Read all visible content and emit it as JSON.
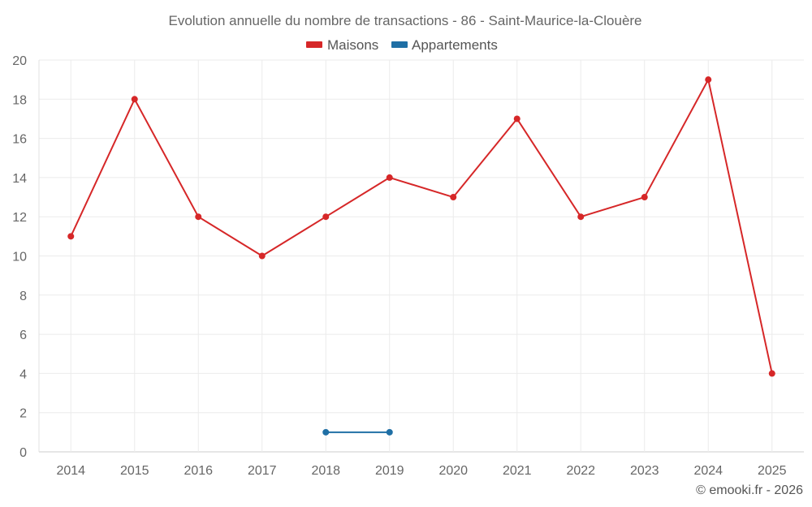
{
  "chart_data": {
    "type": "line",
    "title": "Evolution annuelle du nombre de transactions - 86 - Saint-Maurice-la-Clouère",
    "categories": [
      "2014",
      "2015",
      "2016",
      "2017",
      "2018",
      "2019",
      "2020",
      "2021",
      "2022",
      "2023",
      "2024",
      "2025"
    ],
    "series": [
      {
        "name": "Maisons",
        "color": "#d62728",
        "values": [
          11,
          18,
          12,
          10,
          12,
          14,
          13,
          17,
          12,
          13,
          19,
          4
        ]
      },
      {
        "name": "Appartements",
        "color": "#1f6fa5",
        "values": [
          null,
          null,
          null,
          null,
          1,
          1,
          null,
          null,
          null,
          null,
          null,
          null
        ]
      }
    ],
    "ylim": [
      0,
      20
    ],
    "yticks": [
      "0",
      "2",
      "4",
      "6",
      "8",
      "10",
      "12",
      "14",
      "16",
      "18",
      "20"
    ],
    "grid": true,
    "legend": "top-center",
    "xlabel": "",
    "ylabel": ""
  },
  "credit": "© emooki.fr - 2026"
}
